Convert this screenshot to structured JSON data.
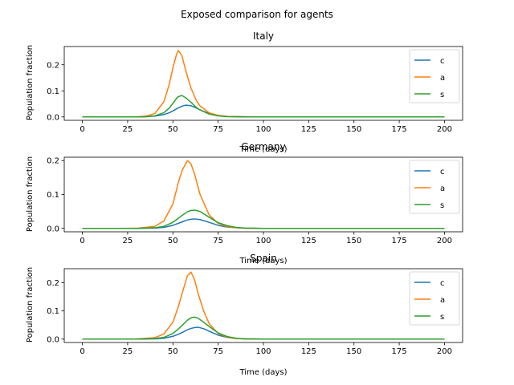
{
  "figure_title": "Exposed comparison for agents",
  "colors": {
    "c": "#1f77b4",
    "a": "#ff7f0e",
    "s": "#2ca02c"
  },
  "chart_data": [
    {
      "type": "line",
      "title": "Italy",
      "xlabel": "Time (days)",
      "ylabel": "Population fraction",
      "xlim": [
        -10,
        210
      ],
      "ylim": [
        -0.013,
        0.27
      ],
      "xticks": [
        0,
        25,
        50,
        75,
        100,
        125,
        150,
        175,
        200
      ],
      "yticks": [
        0.0,
        0.1,
        0.2
      ],
      "ytick_labels": [
        "0.0",
        "0.1",
        "0.2"
      ],
      "legend": "top-right",
      "grid": false,
      "x": [
        0,
        10,
        20,
        30,
        35,
        40,
        45,
        48,
        50,
        52,
        53,
        55,
        57,
        60,
        63,
        65,
        70,
        75,
        80,
        90,
        100,
        125,
        150,
        175,
        200
      ],
      "series": [
        {
          "name": "c",
          "values": [
            0,
            0,
            0,
            0.0002,
            0.001,
            0.003,
            0.009,
            0.016,
            0.023,
            0.031,
            0.035,
            0.041,
            0.045,
            0.043,
            0.034,
            0.027,
            0.013,
            0.005,
            0.002,
            0.0003,
            0,
            0,
            0,
            0,
            0
          ]
        },
        {
          "name": "a",
          "values": [
            0,
            0,
            0,
            0.0005,
            0.003,
            0.013,
            0.058,
            0.125,
            0.188,
            0.24,
            0.255,
            0.235,
            0.18,
            0.11,
            0.062,
            0.042,
            0.016,
            0.006,
            0.002,
            0.0003,
            0,
            0,
            0,
            0,
            0
          ]
        },
        {
          "name": "s",
          "values": [
            0,
            0,
            0,
            0.0002,
            0.001,
            0.004,
            0.016,
            0.034,
            0.052,
            0.071,
            0.078,
            0.082,
            0.074,
            0.056,
            0.036,
            0.027,
            0.011,
            0.004,
            0.001,
            0.0002,
            0,
            0,
            0,
            0,
            0
          ]
        }
      ]
    },
    {
      "type": "line",
      "title": "Germany",
      "xlabel": "Time (days)",
      "ylabel": "Population fraction",
      "xlim": [
        -10,
        210
      ],
      "ylim": [
        -0.01,
        0.21
      ],
      "xticks": [
        0,
        25,
        50,
        75,
        100,
        125,
        150,
        175,
        200
      ],
      "yticks": [
        0.0,
        0.1,
        0.2
      ],
      "ytick_labels": [
        "0.0",
        "0.1",
        "0.2"
      ],
      "legend": "top-right",
      "grid": false,
      "x": [
        0,
        10,
        20,
        30,
        40,
        45,
        50,
        53,
        55,
        58,
        60,
        62,
        65,
        70,
        75,
        80,
        85,
        90,
        100,
        125,
        150,
        175,
        200
      ],
      "series": [
        {
          "name": "c",
          "values": [
            0,
            0,
            0,
            0,
            0.001,
            0.003,
            0.009,
            0.015,
            0.019,
            0.025,
            0.027,
            0.028,
            0.026,
            0.018,
            0.009,
            0.004,
            0.002,
            0.0005,
            0,
            0,
            0,
            0,
            0
          ]
        },
        {
          "name": "a",
          "values": [
            0,
            0,
            0,
            0.0005,
            0.006,
            0.022,
            0.072,
            0.135,
            0.17,
            0.2,
            0.19,
            0.16,
            0.1,
            0.04,
            0.015,
            0.005,
            0.002,
            0.0005,
            0,
            0,
            0,
            0,
            0
          ]
        },
        {
          "name": "s",
          "values": [
            0,
            0,
            0,
            0.0002,
            0.002,
            0.006,
            0.018,
            0.03,
            0.038,
            0.049,
            0.053,
            0.054,
            0.05,
            0.033,
            0.017,
            0.008,
            0.003,
            0.001,
            0,
            0,
            0,
            0,
            0
          ]
        }
      ]
    },
    {
      "type": "line",
      "title": "Spain",
      "xlabel": "Time (days)",
      "ylabel": "Population fraction",
      "xlim": [
        -10,
        210
      ],
      "ylim": [
        -0.012,
        0.25
      ],
      "xticks": [
        0,
        25,
        50,
        75,
        100,
        125,
        150,
        175,
        200
      ],
      "yticks": [
        0.0,
        0.1,
        0.2
      ],
      "ytick_labels": [
        "0.0",
        "0.1",
        "0.2"
      ],
      "legend": "top-right",
      "grid": false,
      "x": [
        0,
        10,
        20,
        30,
        40,
        45,
        50,
        53,
        55,
        58,
        60,
        62,
        64,
        67,
        70,
        75,
        80,
        85,
        90,
        100,
        125,
        150,
        175,
        200
      ],
      "series": [
        {
          "name": "c",
          "values": [
            0,
            0,
            0,
            0,
            0.001,
            0.003,
            0.01,
            0.017,
            0.023,
            0.033,
            0.038,
            0.041,
            0.042,
            0.037,
            0.028,
            0.014,
            0.006,
            0.002,
            0.001,
            0,
            0,
            0,
            0,
            0
          ]
        },
        {
          "name": "a",
          "values": [
            0,
            0,
            0,
            0.0005,
            0.005,
            0.018,
            0.06,
            0.115,
            0.16,
            0.225,
            0.238,
            0.21,
            0.16,
            0.1,
            0.055,
            0.02,
            0.007,
            0.002,
            0.001,
            0,
            0,
            0,
            0,
            0
          ]
        },
        {
          "name": "s",
          "values": [
            0,
            0,
            0,
            0.0002,
            0.002,
            0.006,
            0.02,
            0.036,
            0.048,
            0.067,
            0.076,
            0.078,
            0.074,
            0.06,
            0.045,
            0.022,
            0.009,
            0.003,
            0.001,
            0,
            0,
            0,
            0,
            0
          ]
        }
      ]
    }
  ]
}
